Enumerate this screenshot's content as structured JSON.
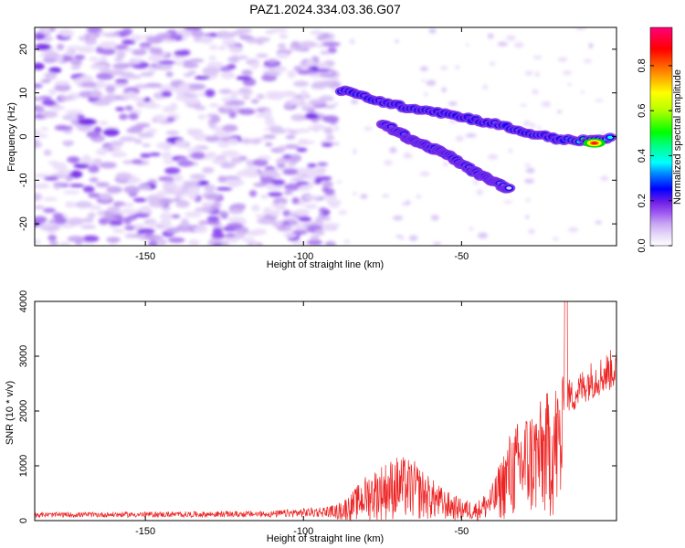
{
  "chart_data": [
    {
      "type": "heatmap",
      "title": "PAZ1.2024.334.03.36.G07",
      "xlabel": "Height of straight line (km)",
      "ylabel": "Frequency (Hz)",
      "xlim": [
        -185,
        -1
      ],
      "ylim": [
        -25,
        25
      ],
      "xticks": [
        -150,
        -100,
        -50
      ],
      "yticks": [
        20,
        10,
        0,
        -10,
        -20
      ],
      "colorbar": {
        "label": "Normalized spectral amplitude",
        "range": [
          0,
          0.97
        ],
        "ticks": [
          "0.0",
          "0.2",
          "0.4",
          "0.6",
          "0.8"
        ],
        "colormap": "rainbow",
        "colors": [
          "#ffffff",
          "#dcc8f5",
          "#b48cf0",
          "#8c3cf0",
          "#6414e6",
          "#0000ff",
          "#00a0ff",
          "#00ffff",
          "#00ff64",
          "#00ff00",
          "#c8ff00",
          "#ffff00",
          "#ff8000",
          "#ff0000",
          "#ff0078"
        ]
      },
      "features": [
        {
          "name": "",
          "x": [
            -88,
            -80,
            -70,
            -60,
            -50,
            -40,
            -30,
            -20,
            -10,
            -3
          ],
          "y": [
            10.5,
            9.0,
            7.0,
            6.0,
            4.5,
            3.0,
            1.0,
            -0.5,
            -1.0,
            -0.5
          ],
          "amplitude": [
            0.3,
            0.35,
            0.3,
            0.3,
            0.35,
            0.3,
            0.3,
            0.3,
            0.8,
            0.5
          ]
        },
        {
          "name": "",
          "x": [
            -75,
            -65,
            -55,
            -45,
            -35
          ],
          "y": [
            3.0,
            -1.0,
            -4.0,
            -8.5,
            -12.0
          ],
          "amplitude": [
            0.2,
            0.3,
            0.3,
            0.25,
            0.15
          ]
        }
      ]
    },
    {
      "type": "line",
      "title": "",
      "xlabel": "Height of straight line (km)",
      "ylabel": "SNR (10 * v/v)",
      "xlim": [
        -185,
        -1
      ],
      "ylim": [
        0,
        4000
      ],
      "xticks": [
        -150,
        -100,
        -50
      ],
      "yticks": [
        0,
        1000,
        2000,
        3000,
        4000
      ],
      "color": "#ee2222",
      "envelope_x": [
        -185,
        -150,
        -110,
        -90,
        -85,
        -80,
        -75,
        -70,
        -65,
        -60,
        -55,
        -50,
        -45,
        -40,
        -35,
        -30,
        -25,
        -20,
        -15,
        -10,
        -5,
        -1
      ],
      "envelope_y": [
        150,
        160,
        180,
        280,
        500,
        850,
        1050,
        1200,
        1100,
        800,
        550,
        400,
        350,
        700,
        1600,
        2000,
        2200,
        2600,
        2500,
        2800,
        2950,
        3100
      ]
    }
  ]
}
